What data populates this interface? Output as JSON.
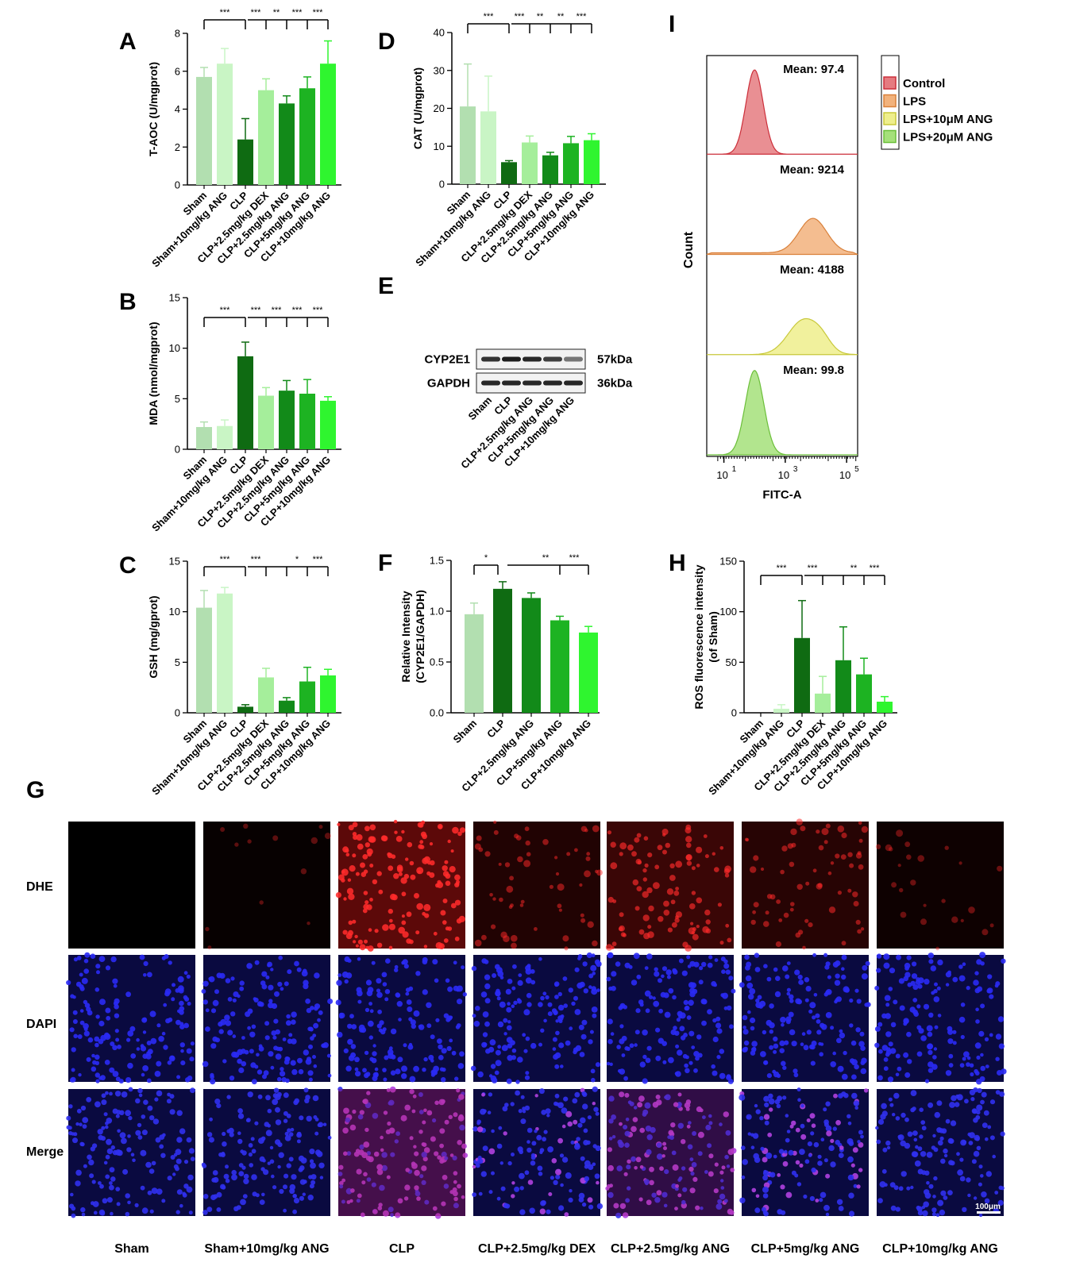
{
  "panels": {
    "A": "A",
    "B": "B",
    "C": "C",
    "D": "D",
    "E": "E",
    "F": "F",
    "G": "G",
    "H": "H",
    "I": "I"
  },
  "colors": {
    "sham": "#b2dfb0",
    "sham_ang": "#c9f5c5",
    "clp": "#0f6b12",
    "dex": "#a5ee9b",
    "ang25": "#128a19",
    "ang5": "#1db322",
    "ang10": "#2ff52f",
    "control": "#e57b80",
    "lps": "#f2b27c",
    "lps10": "#eeee8c",
    "lps20": "#a5e07a"
  },
  "groups6": [
    "Sham",
    "Sham+10mg/kg ANG",
    "CLP",
    "CLP+2.5mg/kg DEX",
    "CLP+2.5mg/kg ANG",
    "CLP+5mg/kg ANG",
    "CLP+10mg/kg ANG"
  ],
  "groups5": [
    "Sham",
    "CLP",
    "CLP+2.5mg/kg ANG",
    "CLP+5mg/kg ANG",
    "CLP+10mg/kg ANG"
  ],
  "chart_data": [
    {
      "panel": "A",
      "type": "bar",
      "ylabel": "T-AOC (U/mgprot)",
      "ylim": [
        0,
        8
      ],
      "yticks": [
        0,
        2,
        4,
        6,
        8
      ],
      "categories": [
        "Sham",
        "Sham+10mg/kg ANG",
        "CLP",
        "CLP+2.5mg/kg DEX",
        "CLP+2.5mg/kg ANG",
        "CLP+5mg/kg ANG",
        "CLP+10mg/kg ANG"
      ],
      "values": [
        5.7,
        6.4,
        2.4,
        5.0,
        4.3,
        5.1,
        6.4
      ],
      "errors": [
        0.5,
        0.8,
        1.1,
        0.6,
        0.4,
        0.6,
        1.2
      ],
      "significance": [
        "***",
        "***",
        "**",
        "***",
        "***"
      ]
    },
    {
      "panel": "B",
      "type": "bar",
      "ylabel": "MDA (nmol/mgprot)",
      "ylim": [
        0,
        15
      ],
      "yticks": [
        0,
        5,
        10,
        15
      ],
      "categories": [
        "Sham",
        "Sham+10mg/kg ANG",
        "CLP",
        "CLP+2.5mg/kg DEX",
        "CLP+2.5mg/kg ANG",
        "CLP+5mg/kg ANG",
        "CLP+10mg/kg ANG"
      ],
      "values": [
        2.2,
        2.3,
        9.2,
        5.3,
        5.8,
        5.5,
        4.8
      ],
      "errors": [
        0.5,
        0.6,
        1.4,
        0.8,
        1.0,
        1.4,
        0.4
      ],
      "significance": [
        "***",
        "***",
        "***",
        "***",
        "***"
      ]
    },
    {
      "panel": "C",
      "type": "bar",
      "ylabel": "GSH (mg/gprot)",
      "ylim": [
        0,
        15
      ],
      "yticks": [
        0,
        5,
        10,
        15
      ],
      "categories": [
        "Sham",
        "Sham+10mg/kg ANG",
        "CLP",
        "CLP+2.5mg/kg DEX",
        "CLP+2.5mg/kg ANG",
        "CLP+5mg/kg ANG",
        "CLP+10mg/kg ANG"
      ],
      "values": [
        10.4,
        11.8,
        0.6,
        3.5,
        1.2,
        3.1,
        3.7
      ],
      "errors": [
        1.7,
        0.6,
        0.2,
        0.9,
        0.3,
        1.4,
        0.6
      ],
      "significance": [
        "***",
        "***",
        "*",
        "***"
      ]
    },
    {
      "panel": "D",
      "type": "bar",
      "ylabel": "CAT (U/mgprot)",
      "ylim": [
        0,
        40
      ],
      "yticks": [
        0,
        10,
        20,
        30,
        40
      ],
      "categories": [
        "Sham",
        "Sham+10mg/kg ANG",
        "CLP",
        "CLP+2.5mg/kg DEX",
        "CLP+2.5mg/kg ANG",
        "CLP+5mg/kg ANG",
        "CLP+10mg/kg ANG"
      ],
      "values": [
        20.5,
        19.2,
        5.8,
        11.0,
        7.6,
        10.8,
        11.6
      ],
      "errors": [
        11.2,
        9.3,
        0.4,
        1.7,
        0.8,
        1.8,
        1.7
      ],
      "significance": [
        "***",
        "***",
        "**",
        "**",
        "***"
      ]
    },
    {
      "panel": "F",
      "type": "bar",
      "ylabel": "Relative Intensity (CYP2E1/GAPDH)",
      "ylim": [
        0,
        1.5
      ],
      "yticks": [
        "0.0",
        "0.5",
        "1.0",
        "1.5"
      ],
      "categories": [
        "Sham",
        "CLP",
        "CLP+2.5mg/kg ANG",
        "CLP+5mg/kg ANG",
        "CLP+10mg/kg ANG"
      ],
      "values": [
        0.97,
        1.22,
        1.13,
        0.91,
        0.79
      ],
      "errors": [
        0.11,
        0.07,
        0.05,
        0.04,
        0.06
      ],
      "significance": [
        "*",
        "**",
        "***"
      ]
    },
    {
      "panel": "H",
      "type": "bar",
      "ylabel": "ROS fluorescence intensity (of Sham)",
      "ylim": [
        0,
        150
      ],
      "yticks": [
        0,
        50,
        100,
        150
      ],
      "categories": [
        "Sham",
        "Sham+10mg/kg ANG",
        "CLP",
        "CLP+2.5mg/kg DEX",
        "CLP+2.5mg/kg ANG",
        "CLP+5mg/kg ANG",
        "CLP+10mg/kg ANG"
      ],
      "values": [
        0,
        4,
        74,
        19,
        52,
        38,
        11
      ],
      "errors": [
        0,
        4,
        37,
        17,
        33,
        16,
        5
      ],
      "significance": [
        "***",
        "***",
        "**",
        "***"
      ]
    },
    {
      "panel": "I",
      "type": "area",
      "ylabel": "Count",
      "xlabel": "FITC-A",
      "legend": [
        "Control",
        "LPS",
        "LPS+10μM ANG",
        "LPS+20μM ANG"
      ],
      "means": [
        "Mean: 97.4",
        "Mean: 9214",
        "Mean: 4188",
        "Mean: 99.8"
      ],
      "xticks": [
        "10",
        "10",
        "10"
      ],
      "xtick_exponents": [
        "1",
        "3",
        "5"
      ],
      "series": [
        {
          "name": "Control",
          "peak_log10": 2.0,
          "width": 0.28
        },
        {
          "name": "LPS",
          "peak_log10": 3.9,
          "width": 0.45
        },
        {
          "name": "LPS+10μM ANG",
          "peak_log10": 3.6,
          "width": 0.5
        },
        {
          "name": "LPS+20μM ANG",
          "peak_log10": 2.0,
          "width": 0.3
        }
      ]
    }
  ],
  "blot": {
    "bands": [
      "CYP2E1",
      "GAPDH"
    ],
    "sizes": [
      "57kDa",
      "36kDa"
    ],
    "lanes": [
      "Sham",
      "CLP",
      "CLP+2.5mg/kg ANG",
      "CLP+5mg/kg ANG",
      "CLP+10mg/kg ANG"
    ]
  },
  "microscopy": {
    "rows": [
      "DHE",
      "DAPI",
      "Merge"
    ],
    "columns": [
      "Sham",
      "Sham+10mg/kg ANG",
      "CLP",
      "CLP+2.5mg/kg DEX",
      "CLP+2.5mg/kg ANG",
      "CLP+5mg/kg ANG",
      "CLP+10mg/kg ANG"
    ],
    "dhe_intensity": [
      0.0,
      0.08,
      0.95,
      0.35,
      0.6,
      0.4,
      0.15
    ],
    "scale_bar": "100μm"
  }
}
